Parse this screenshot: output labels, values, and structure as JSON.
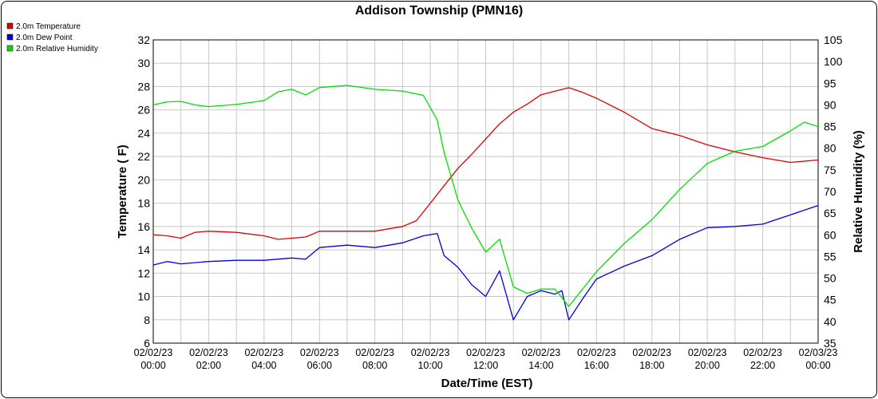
{
  "chart_data": {
    "type": "line",
    "title": "Addison Township (PMN16)",
    "xlabel": "Date/Time (EST)",
    "ylabel": "Temperature ( F)",
    "y2label": "Relative Humidity (%)",
    "xlim_hours": [
      0,
      24
    ],
    "ylim": [
      6,
      32
    ],
    "y2lim": [
      35,
      105
    ],
    "yticks": [
      "6",
      "8",
      "10",
      "12",
      "14",
      "16",
      "18",
      "20",
      "22",
      "24",
      "26",
      "28",
      "30",
      "32"
    ],
    "y2ticks": [
      "35",
      "40",
      "45",
      "50",
      "55",
      "60",
      "65",
      "70",
      "75",
      "80",
      "85",
      "90",
      "95",
      "100",
      "105"
    ],
    "xtick_labels": [
      [
        "02/02/23",
        "00:00"
      ],
      [
        "02/02/23",
        "02:00"
      ],
      [
        "02/02/23",
        "04:00"
      ],
      [
        "02/02/23",
        "06:00"
      ],
      [
        "02/02/23",
        "08:00"
      ],
      [
        "02/02/23",
        "10:00"
      ],
      [
        "02/02/23",
        "12:00"
      ],
      [
        "02/02/23",
        "14:00"
      ],
      [
        "02/02/23",
        "16:00"
      ],
      [
        "02/02/23",
        "18:00"
      ],
      [
        "02/02/23",
        "20:00"
      ],
      [
        "02/02/23",
        "22:00"
      ],
      [
        "02/03/23",
        "00:00"
      ]
    ],
    "grid": true,
    "legend_position": "top-left",
    "series": [
      {
        "name": "2.0m Temperature",
        "color": "#e00000",
        "axis": "left",
        "points": [
          [
            "02/02/23 00:00",
            15.3
          ],
          [
            "02/02/23 00:30",
            15.2
          ],
          [
            "02/02/23 01:00",
            15.0
          ],
          [
            "02/02/23 01:30",
            15.5
          ],
          [
            "02/02/23 02:00",
            15.6
          ],
          [
            "02/02/23 03:00",
            15.5
          ],
          [
            "02/02/23 04:00",
            15.2
          ],
          [
            "02/02/23 04:30",
            14.9
          ],
          [
            "02/02/23 05:00",
            15.0
          ],
          [
            "02/02/23 05:30",
            15.1
          ],
          [
            "02/02/23 06:00",
            15.6
          ],
          [
            "02/02/23 07:00",
            15.6
          ],
          [
            "02/02/23 08:00",
            15.6
          ],
          [
            "02/02/23 09:00",
            16.0
          ],
          [
            "02/02/23 09:30",
            16.5
          ],
          [
            "02/02/23 10:00",
            18.0
          ],
          [
            "02/02/23 10:30",
            19.5
          ],
          [
            "02/02/23 11:00",
            21.0
          ],
          [
            "02/02/23 11:30",
            22.2
          ],
          [
            "02/02/23 12:00",
            23.5
          ],
          [
            "02/02/23 12:30",
            24.8
          ],
          [
            "02/02/23 13:00",
            25.8
          ],
          [
            "02/02/23 13:30",
            26.5
          ],
          [
            "02/02/23 14:00",
            27.3
          ],
          [
            "02/02/23 14:30",
            27.6
          ],
          [
            "02/02/23 15:00",
            27.9
          ],
          [
            "02/02/23 15:30",
            27.5
          ],
          [
            "02/02/23 16:00",
            27.0
          ],
          [
            "02/02/23 17:00",
            25.8
          ],
          [
            "02/02/23 18:00",
            24.4
          ],
          [
            "02/02/23 19:00",
            23.8
          ],
          [
            "02/02/23 20:00",
            23.0
          ],
          [
            "02/02/23 21:00",
            22.4
          ],
          [
            "02/02/23 22:00",
            21.9
          ],
          [
            "02/02/23 23:00",
            21.5
          ],
          [
            "02/03/23 00:00",
            21.7
          ]
        ]
      },
      {
        "name": "2.0m Dew Point",
        "color": "#0000e0",
        "axis": "left",
        "points": [
          [
            "02/02/23 00:00",
            12.7
          ],
          [
            "02/02/23 00:30",
            13.0
          ],
          [
            "02/02/23 01:00",
            12.8
          ],
          [
            "02/02/23 02:00",
            13.0
          ],
          [
            "02/02/23 03:00",
            13.1
          ],
          [
            "02/02/23 04:00",
            13.1
          ],
          [
            "02/02/23 05:00",
            13.3
          ],
          [
            "02/02/23 05:30",
            13.2
          ],
          [
            "02/02/23 06:00",
            14.2
          ],
          [
            "02/02/23 07:00",
            14.4
          ],
          [
            "02/02/23 08:00",
            14.2
          ],
          [
            "02/02/23 09:00",
            14.6
          ],
          [
            "02/02/23 09:45",
            15.2
          ],
          [
            "02/02/23 10:15",
            15.4
          ],
          [
            "02/02/23 10:30",
            13.5
          ],
          [
            "02/02/23 11:00",
            12.5
          ],
          [
            "02/02/23 11:30",
            11.0
          ],
          [
            "02/02/23 12:00",
            10.0
          ],
          [
            "02/02/23 12:30",
            12.2
          ],
          [
            "02/02/23 13:00",
            8.0
          ],
          [
            "02/02/23 13:30",
            10.0
          ],
          [
            "02/02/23 14:00",
            10.5
          ],
          [
            "02/02/23 14:30",
            10.2
          ],
          [
            "02/02/23 14:45",
            10.5
          ],
          [
            "02/02/23 15:00",
            8.0
          ],
          [
            "02/02/23 15:30",
            9.8
          ],
          [
            "02/02/23 16:00",
            11.5
          ],
          [
            "02/02/23 17:00",
            12.6
          ],
          [
            "02/02/23 18:00",
            13.5
          ],
          [
            "02/02/23 19:00",
            14.9
          ],
          [
            "02/02/23 20:00",
            15.9
          ],
          [
            "02/02/23 21:00",
            16.0
          ],
          [
            "02/02/23 22:00",
            16.2
          ],
          [
            "02/02/23 23:00",
            17.0
          ],
          [
            "02/03/23 00:00",
            17.8
          ]
        ]
      },
      {
        "name": "2.0m Relative Humidity",
        "color": "#00e000",
        "axis": "right",
        "points": [
          [
            "02/02/23 00:00",
            90.0
          ],
          [
            "02/02/23 00:30",
            90.7
          ],
          [
            "02/02/23 01:00",
            90.8
          ],
          [
            "02/02/23 01:30",
            90.0
          ],
          [
            "02/02/23 02:00",
            89.6
          ],
          [
            "02/02/23 03:00",
            90.1
          ],
          [
            "02/02/23 04:00",
            91.0
          ],
          [
            "02/02/23 04:30",
            93.0
          ],
          [
            "02/02/23 05:00",
            93.6
          ],
          [
            "02/02/23 05:30",
            92.3
          ],
          [
            "02/02/23 06:00",
            94.0
          ],
          [
            "02/02/23 07:00",
            94.5
          ],
          [
            "02/02/23 08:00",
            93.6
          ],
          [
            "02/02/23 09:00",
            93.2
          ],
          [
            "02/02/23 09:45",
            92.2
          ],
          [
            "02/02/23 10:15",
            86.5
          ],
          [
            "02/02/23 10:30",
            79.0
          ],
          [
            "02/02/23 11:00",
            68.0
          ],
          [
            "02/02/23 11:30",
            61.5
          ],
          [
            "02/02/23 12:00",
            56.0
          ],
          [
            "02/02/23 12:30",
            59.0
          ],
          [
            "02/02/23 13:00",
            48.0
          ],
          [
            "02/02/23 13:30",
            46.5
          ],
          [
            "02/02/23 14:00",
            47.5
          ],
          [
            "02/02/23 14:30",
            47.5
          ],
          [
            "02/02/23 15:00",
            43.5
          ],
          [
            "02/02/23 16:00",
            51.5
          ],
          [
            "02/02/23 17:00",
            58.0
          ],
          [
            "02/02/23 18:00",
            63.5
          ],
          [
            "02/02/23 19:00",
            70.5
          ],
          [
            "02/02/23 20:00",
            76.5
          ],
          [
            "02/02/23 21:00",
            79.3
          ],
          [
            "02/02/23 22:00",
            80.4
          ],
          [
            "02/02/23 23:00",
            84.0
          ],
          [
            "02/02/23 23:30",
            86.0
          ],
          [
            "02/03/23 00:00",
            85.0
          ]
        ]
      }
    ]
  }
}
